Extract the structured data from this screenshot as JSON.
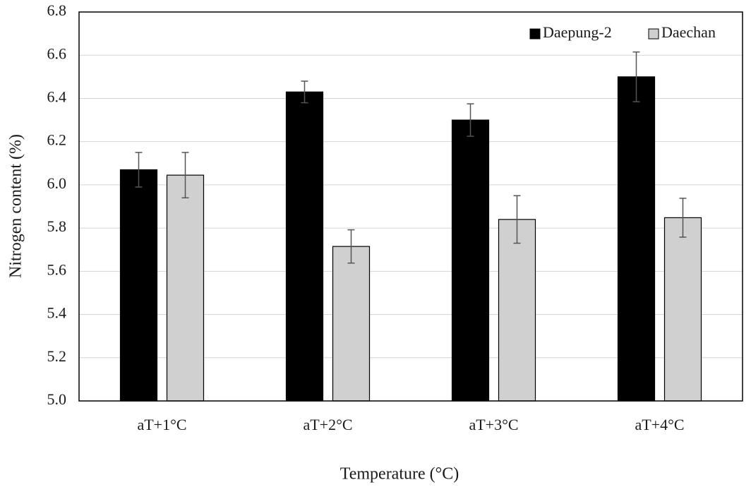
{
  "chart_data": {
    "type": "bar",
    "title": "",
    "xlabel": "Temperature (°C)",
    "ylabel": "Nitrogen content (%)",
    "ylim": [
      5.0,
      6.8
    ],
    "ytick_step": 0.2,
    "ytick_labels": [
      "5.0",
      "5.2",
      "5.4",
      "5.6",
      "5.8",
      "6.0",
      "6.2",
      "6.4",
      "6.6",
      "6.8"
    ],
    "grid": true,
    "legend_position": "top-right",
    "categories": [
      "aT+1°C",
      "aT+2°C",
      "aT+3°C",
      "aT+4°C"
    ],
    "series": [
      {
        "name": "Daepung-2",
        "color": "#000000",
        "values": [
          6.07,
          6.43,
          6.3,
          6.5
        ],
        "errors": [
          0.08,
          0.05,
          0.075,
          0.115
        ]
      },
      {
        "name": "Daechan",
        "color": "#d0d0d0",
        "values": [
          6.045,
          5.715,
          5.84,
          5.848
        ],
        "errors": [
          0.105,
          0.077,
          0.11,
          0.09
        ]
      }
    ]
  }
}
